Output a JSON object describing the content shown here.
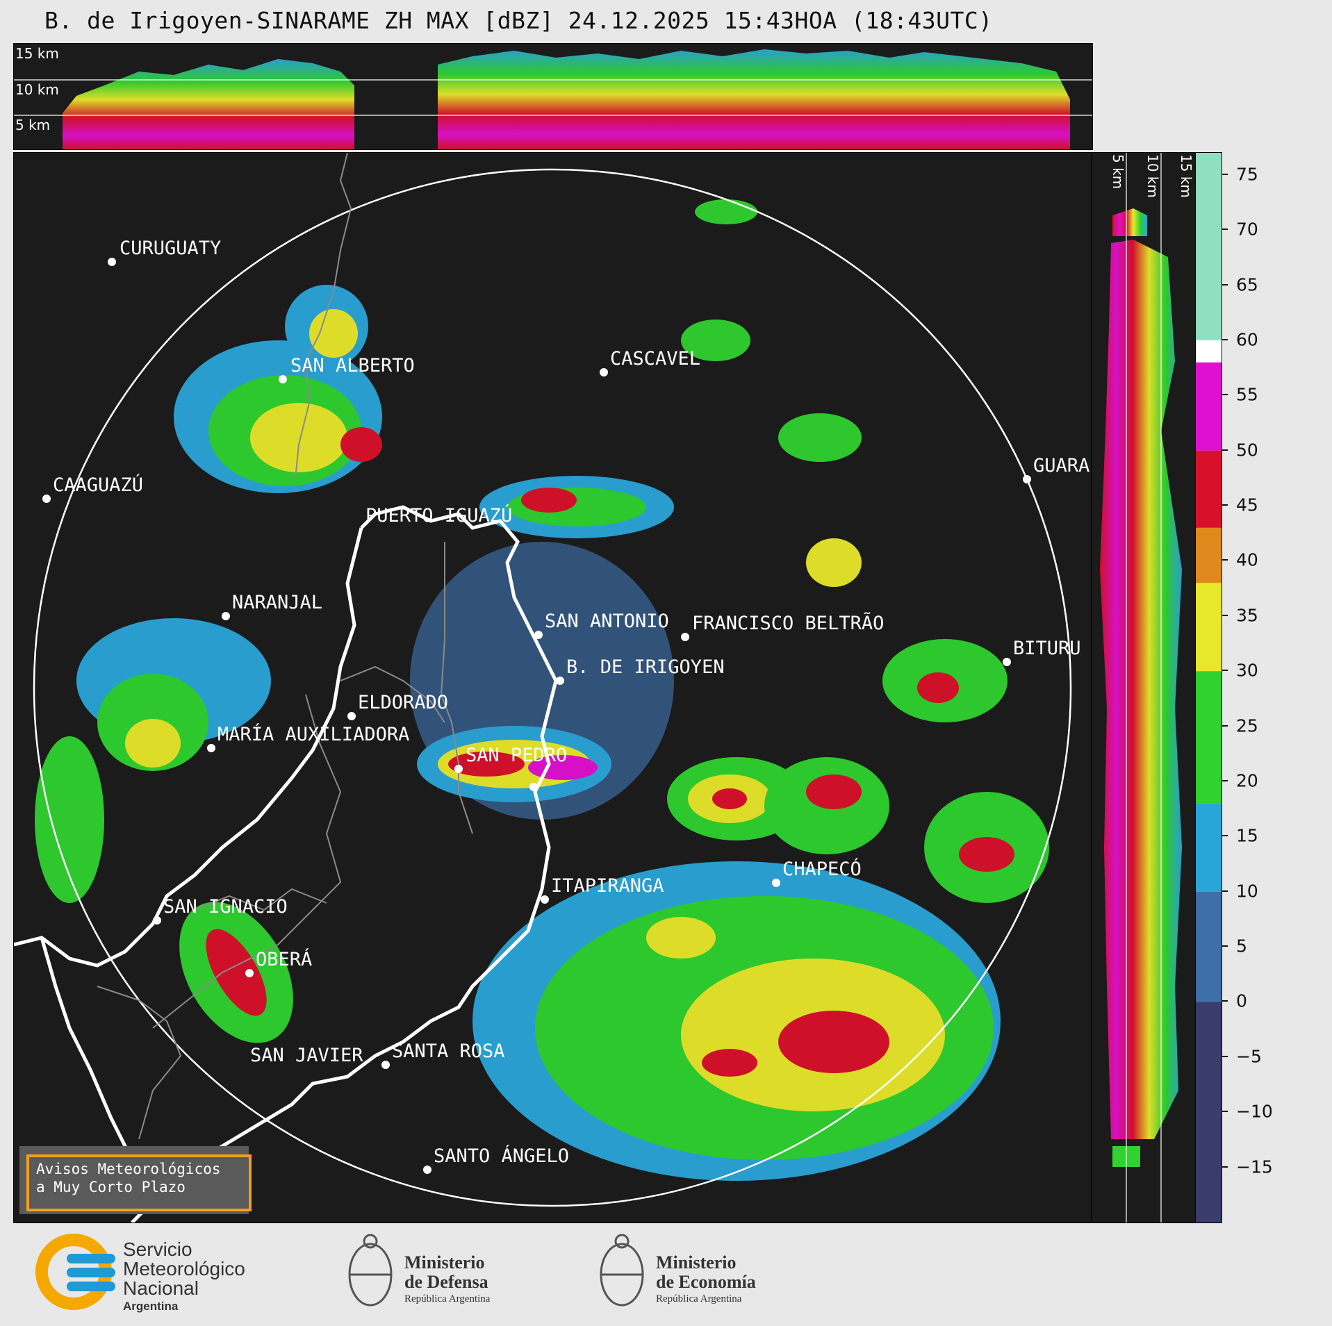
{
  "title": "B. de Irigoyen-SINARAME ZH MAX [dBZ] 24.12.2025 15:43HOA (18:43UTC)",
  "top_panel": {
    "altitude_labels": [
      "15 km",
      "10 km",
      "5 km"
    ]
  },
  "right_panel": {
    "altitude_labels": [
      "5 km",
      "10 km",
      "15 km"
    ]
  },
  "colorbar": {
    "unit": "dBZ",
    "ticks": [
      "75",
      "70",
      "65",
      "60",
      "55",
      "50",
      "45",
      "40",
      "35",
      "30",
      "25",
      "20",
      "15",
      "10",
      "5",
      "0",
      "−5",
      "−10",
      "−15"
    ],
    "range": [
      -20,
      77
    ],
    "colors": {
      "low": "#3a3d6b",
      "blue": "#3f6fa8",
      "cyan": "#2aa5d8",
      "green": "#2fd22f",
      "yellow": "#e8e82a",
      "orange": "#e08a1e",
      "red": "#d8102a",
      "magenta": "#e010d0",
      "white": "#ffffff",
      "mint": "#8fe0c0"
    }
  },
  "cities": [
    {
      "name": "CURUGUATY"
    },
    {
      "name": "SAN ALBERTO"
    },
    {
      "name": "CASCAVEL"
    },
    {
      "name": "CAAGUAZÚ"
    },
    {
      "name": "GUARA"
    },
    {
      "name": "PUERTO IGUAZÚ"
    },
    {
      "name": "NARANJAL"
    },
    {
      "name": "SAN ANTONIO"
    },
    {
      "name": "FRANCISCO BELTRÃO"
    },
    {
      "name": "BITURU"
    },
    {
      "name": "B. DE IRIGOYEN"
    },
    {
      "name": "ELDORADO"
    },
    {
      "name": "MARÍA AUXILIADORA"
    },
    {
      "name": "SAN PEDRO"
    },
    {
      "name": "CHAPECÓ"
    },
    {
      "name": "ITAPIRANGA"
    },
    {
      "name": "SAN IGNACIO"
    },
    {
      "name": "OBERÁ"
    },
    {
      "name": "SAN JAVIER"
    },
    {
      "name": "SANTA ROSA"
    },
    {
      "name": "SANTO ÁNGELO"
    }
  ],
  "notice": {
    "line1": "Avisos Meteorológicos",
    "line2": "a Muy Corto Plazo"
  },
  "logos": {
    "smn": {
      "line1": "Servicio",
      "line2": "Meteorológico",
      "line3": "Nacional",
      "line4": "Argentina"
    },
    "defensa": {
      "line1": "Ministerio",
      "line2": "de Defensa",
      "line3": "República Argentina"
    },
    "economia": {
      "line1": "Ministerio",
      "line2": "de Economía",
      "line3": "República Argentina"
    }
  }
}
